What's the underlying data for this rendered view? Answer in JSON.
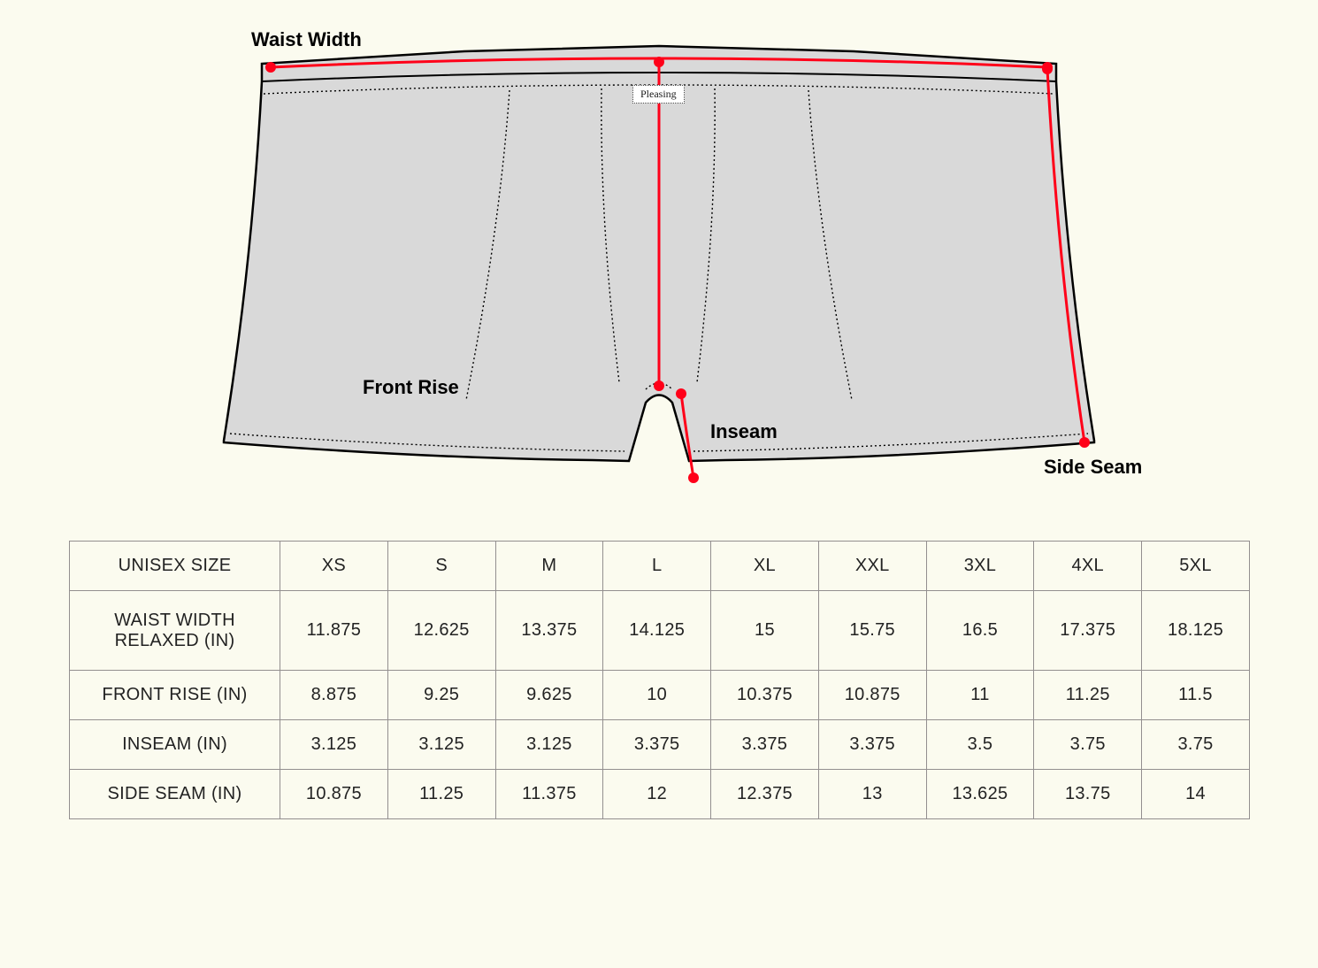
{
  "diagram": {
    "background": "#fbfbef",
    "garment_fill": "#d9d9d9",
    "garment_stroke": "#000000",
    "stitch_stroke": "#000000",
    "stitch_dash": "2 3",
    "measure_stroke": "#ff0019",
    "measure_dot_fill": "#ff0019",
    "label_color": "#000000",
    "label_fontsize": 22,
    "label_fontweight": 800,
    "brand_text": "Pleasing",
    "labels": {
      "waist": "Waist Width",
      "front_rise": "Front Rise",
      "inseam": "Inseam",
      "side_seam": "Side Seam"
    }
  },
  "table": {
    "border_color": "#938f8f",
    "text_color": "#222222",
    "fontsize": 20,
    "columns": [
      "UNISEX SIZE",
      "XS",
      "S",
      "M",
      "L",
      "XL",
      "XXL",
      "3XL",
      "4XL",
      "5XL"
    ],
    "rows": [
      {
        "label": "WAIST WIDTH RELAXED (IN)",
        "values": [
          "11.875",
          "12.625",
          "13.375",
          "14.125",
          "15",
          "15.75",
          "16.5",
          "17.375",
          "18.125"
        ]
      },
      {
        "label": "FRONT RISE (IN)",
        "values": [
          "8.875",
          "9.25",
          "9.625",
          "10",
          "10.375",
          "10.875",
          "11",
          "11.25",
          "11.5"
        ]
      },
      {
        "label": "INSEAM (IN)",
        "values": [
          "3.125",
          "3.125",
          "3.125",
          "3.375",
          "3.375",
          "3.375",
          "3.5",
          "3.75",
          "3.75"
        ]
      },
      {
        "label": "SIDE SEAM (IN)",
        "values": [
          "10.875",
          "11.25",
          "11.375",
          "12",
          "12.375",
          "13",
          "13.625",
          "13.75",
          "14"
        ]
      }
    ],
    "row_heights": {
      "header": 56,
      "waist": 90,
      "default": 56
    }
  }
}
